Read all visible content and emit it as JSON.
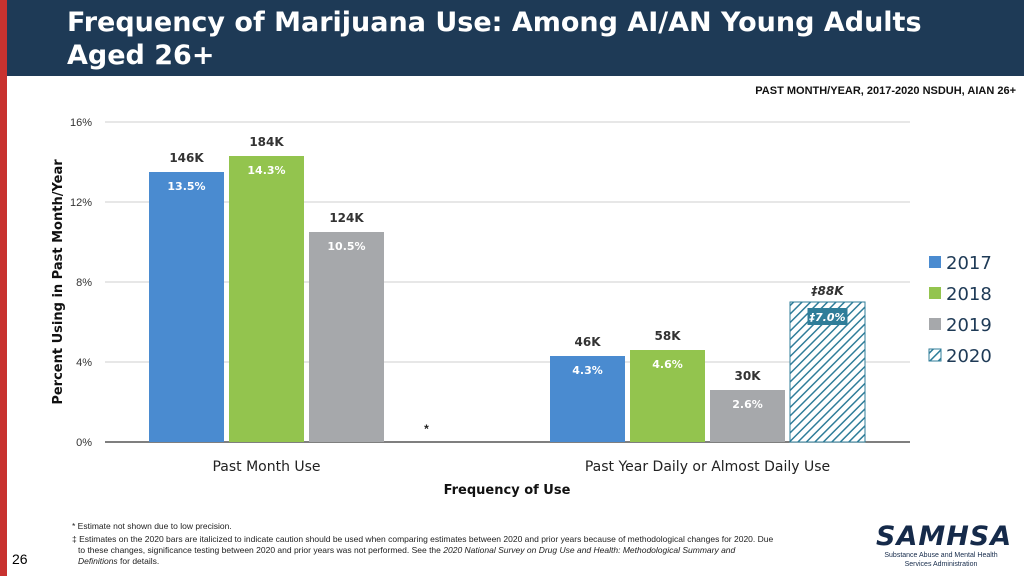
{
  "slide": {
    "title": "Frequency of Marijuana Use: Among AI/AN Young Adults Aged 26+",
    "subtitle": "PAST MONTH/YEAR, 2017-2020 NSDUH, AIAN 26+",
    "page_number": "26"
  },
  "footnotes": {
    "asterisk": "* Estimate not shown due to low precision.",
    "dagger_line1": "‡ Estimates on the 2020 bars are italicized to indicate caution should be used when comparing estimates between 2020 and prior years because of methodological changes for 2020. Due",
    "dagger_line2_pre": "to these changes, significance testing between 2020 and prior years was not performed. See the ",
    "dagger_line2_em": "2020 National Survey on Drug Use and Health: Methodological Summary and",
    "dagger_line3_em": "Definitions",
    "dagger_line3_post": " for details."
  },
  "logo": {
    "name": "SAMHSA",
    "tagline_line1": "Substance Abuse and Mental Health",
    "tagline_line2": "Services Administration"
  },
  "colors": {
    "2017": "#4a8bd0",
    "2018": "#93c44e",
    "2019": "#a6a8ab",
    "2020": "#2f7d99",
    "header": "#1e3a56",
    "accent_bar": "#c8322f"
  },
  "chart_data": {
    "type": "bar",
    "xlabel": "Frequency of Use",
    "ylabel": "Percent Using in Past Month/Year",
    "ylim": [
      0,
      16
    ],
    "yticks": [
      0,
      4,
      8,
      12,
      16
    ],
    "ytick_labels": [
      "0%",
      "4%",
      "8%",
      "12%",
      "16%"
    ],
    "categories": [
      "Past Month Use",
      "Past Year Daily or Almost Daily Use"
    ],
    "legend_position": "right",
    "series": [
      {
        "name": "2017",
        "values": [
          13.5,
          4.3
        ],
        "labels": [
          "13.5%",
          "4.3%"
        ],
        "counts": [
          "146K",
          "46K"
        ],
        "pattern": "solid"
      },
      {
        "name": "2018",
        "values": [
          14.3,
          4.6
        ],
        "labels": [
          "14.3%",
          "4.6%"
        ],
        "counts": [
          "184K",
          "58K"
        ],
        "pattern": "solid"
      },
      {
        "name": "2019",
        "values": [
          10.5,
          2.6
        ],
        "labels": [
          "10.5%",
          "2.6%"
        ],
        "counts": [
          "124K",
          "30K"
        ],
        "pattern": "solid"
      },
      {
        "name": "2020",
        "values": [
          null,
          7.0
        ],
        "labels": [
          null,
          "‡7.0%"
        ],
        "counts": [
          null,
          "‡88K"
        ],
        "pattern": "hatched",
        "missing_marker": "*"
      }
    ]
  }
}
